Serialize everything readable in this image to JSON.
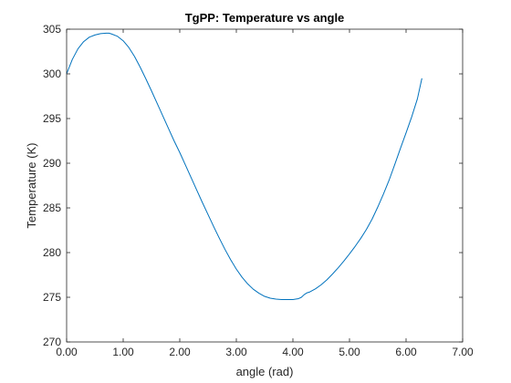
{
  "chart_data": {
    "type": "line",
    "title": "TgPP: Temperature vs angle",
    "xlabel": "angle (rad)",
    "ylabel": "Temperature (K)",
    "xlim": [
      0,
      7
    ],
    "ylim": [
      270,
      305
    ],
    "xticks": [
      0,
      1,
      2,
      3,
      4,
      5,
      6,
      7
    ],
    "xtick_labels": [
      "0.00",
      "1.00",
      "2.00",
      "3.00",
      "4.00",
      "5.00",
      "6.00",
      "7.00"
    ],
    "yticks": [
      270,
      275,
      280,
      285,
      290,
      295,
      300,
      305
    ],
    "ytick_labels": [
      "270",
      "275",
      "280",
      "285",
      "290",
      "295",
      "300",
      "305"
    ],
    "grid": false,
    "line_color": "#0072BD",
    "series": [
      {
        "x": [
          0.0,
          0.1,
          0.2,
          0.3,
          0.4,
          0.5,
          0.6,
          0.7,
          0.75,
          0.8,
          0.9,
          1.0,
          1.1,
          1.2,
          1.3,
          1.4,
          1.5,
          1.6,
          1.7,
          1.8,
          1.9,
          2.0,
          2.1,
          2.2,
          2.3,
          2.4,
          2.5,
          2.6,
          2.7,
          2.8,
          2.9,
          3.0,
          3.1,
          3.2,
          3.3,
          3.4,
          3.5,
          3.6,
          3.7,
          3.8,
          3.9,
          4.0,
          4.1,
          4.15,
          4.2,
          4.25,
          4.3,
          4.4,
          4.5,
          4.6,
          4.7,
          4.8,
          4.9,
          5.0,
          5.1,
          5.2,
          5.3,
          5.4,
          5.5,
          5.6,
          5.7,
          5.8,
          5.9,
          6.0,
          6.1,
          6.2,
          6.28
        ],
        "y": [
          300.0,
          301.6,
          302.8,
          303.6,
          304.1,
          304.35,
          304.5,
          304.55,
          304.55,
          304.45,
          304.2,
          303.7,
          302.95,
          301.95,
          300.75,
          299.45,
          298.1,
          296.7,
          295.3,
          293.9,
          292.5,
          291.2,
          289.8,
          288.4,
          287.0,
          285.6,
          284.25,
          282.9,
          281.6,
          280.35,
          279.2,
          278.15,
          277.25,
          276.5,
          275.9,
          275.45,
          275.1,
          274.9,
          274.8,
          274.75,
          274.75,
          274.75,
          274.85,
          275.0,
          275.3,
          275.5,
          275.6,
          275.95,
          276.4,
          276.95,
          277.6,
          278.3,
          279.05,
          279.85,
          280.7,
          281.6,
          282.6,
          283.75,
          285.1,
          286.55,
          288.1,
          289.85,
          291.65,
          293.4,
          295.2,
          297.2,
          299.5
        ]
      }
    ]
  }
}
